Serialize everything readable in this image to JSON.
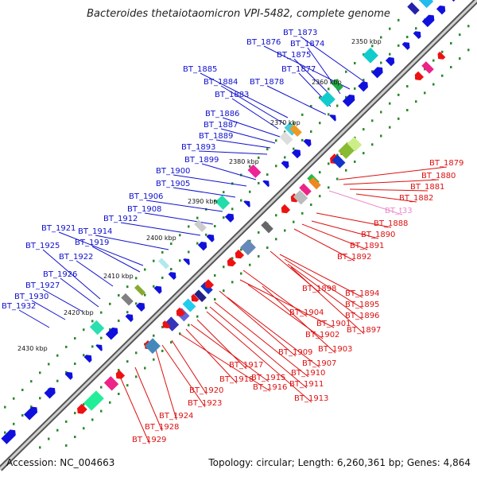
{
  "title": "Bacteroides thetaiotaomicron VPI-5482, complete genome",
  "footer": {
    "accession": "Accession: NC_004663",
    "topology": "Topology: circular; Length: 6,260,361 bp; Genes: 4,864"
  },
  "colors": {
    "backbone": "#777777",
    "forward_label": "#1010cc",
    "reverse_label": "#dd1010",
    "trna_label": "#ee88cc",
    "tick": "#2a8a2a"
  },
  "kbp_markers": [
    "2350 kbp",
    "2360 kbp",
    "2370 kbp",
    "2380 kbp",
    "2390 kbp",
    "2400 kbp",
    "2410 kbp",
    "2420 kbp",
    "2430 kbp"
  ],
  "forward_labels": [
    "BT_1873",
    "BT_1876",
    "BT_1874",
    "BT_1875",
    "BT_1877",
    "BT_1878",
    "BT_1885",
    "BT_1884",
    "BT_1883",
    "BT_1886",
    "BT_1887",
    "BT_1889",
    "BT_1893",
    "BT_1899",
    "BT_1900",
    "BT_1905",
    "BT_1906",
    "BT_1908",
    "BT_1912",
    "BT_1914",
    "BT_1921",
    "BT_1919",
    "BT_1925",
    "BT_1922",
    "BT_1926",
    "BT_1927",
    "BT_1930",
    "BT_1932"
  ],
  "reverse_labels": [
    "BT_1879",
    "BT_1880",
    "BT_1881",
    "BT_1882",
    "BT_t33",
    "BT_1888",
    "BT_1890",
    "BT_1891",
    "BT_1892",
    "BT_1898",
    "BT_1894",
    "BT_1895",
    "BT_1896",
    "BT_1897",
    "BT_1904",
    "BT_1901",
    "BT_1902",
    "BT_1903",
    "BT_1909",
    "BT_1907",
    "BT_1910",
    "BT_1911",
    "BT_1913",
    "BT_1917",
    "BT_1915",
    "BT_1918",
    "BT_1916",
    "BT_1920",
    "BT_1923",
    "BT_1924",
    "BT_1928",
    "BT_1929"
  ]
}
